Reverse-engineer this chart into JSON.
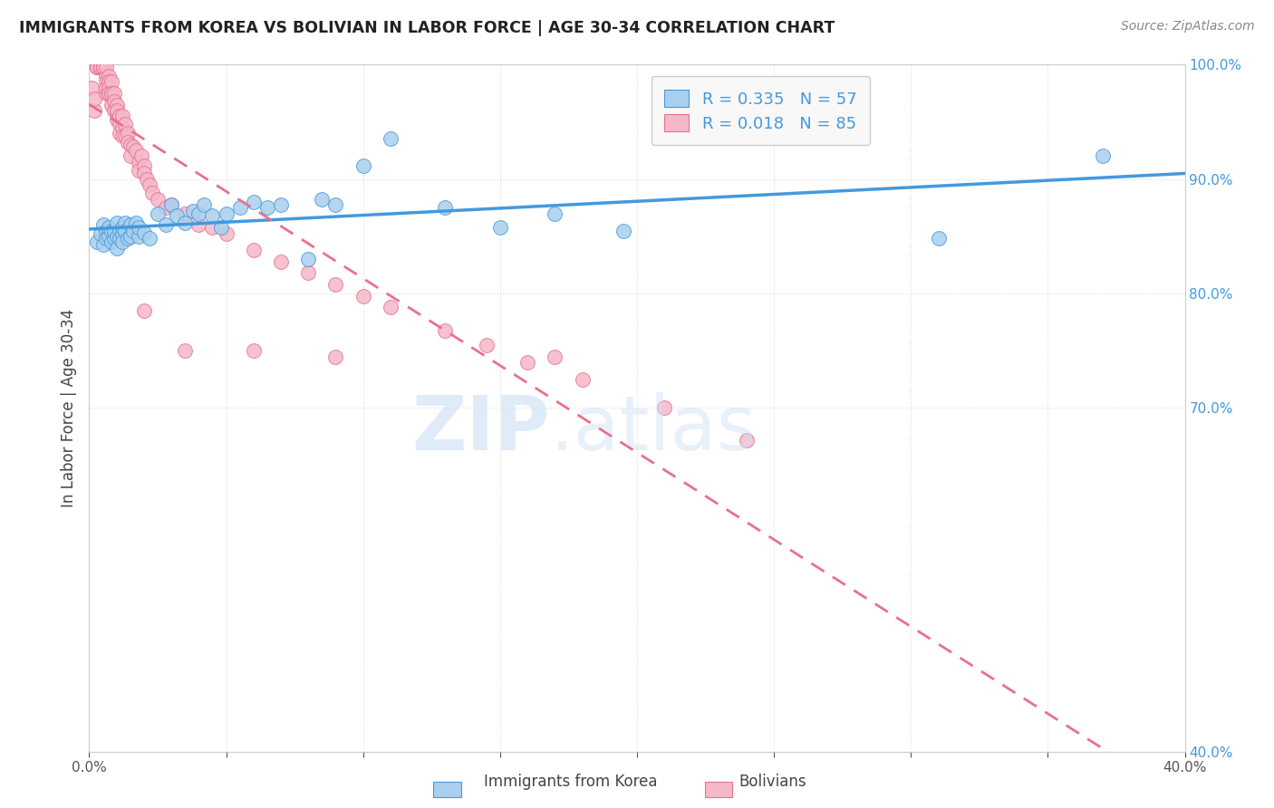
{
  "title": "IMMIGRANTS FROM KOREA VS BOLIVIAN IN LABOR FORCE | AGE 30-34 CORRELATION CHART",
  "source": "Source: ZipAtlas.com",
  "ylabel": "In Labor Force | Age 30-34",
  "x_min": 0.0,
  "x_max": 0.4,
  "y_min": 0.4,
  "y_max": 1.0,
  "grid_color": "#dddddd",
  "background_color": "#ffffff",
  "korea_color": "#aacfee",
  "bolivia_color": "#f5b8c8",
  "korea_line_color": "#4499dd",
  "bolivia_line_color": "#e87090",
  "legend_korea_label": "R = 0.335   N = 57",
  "legend_bolivia_label": "R = 0.018   N = 85",
  "watermark_zip": "ZIP",
  "watermark_atlas": ".atlas",
  "korea_scatter_x": [
    0.003,
    0.004,
    0.005,
    0.005,
    0.006,
    0.006,
    0.007,
    0.007,
    0.008,
    0.008,
    0.009,
    0.009,
    0.01,
    0.01,
    0.01,
    0.011,
    0.011,
    0.012,
    0.012,
    0.012,
    0.013,
    0.013,
    0.014,
    0.015,
    0.015,
    0.016,
    0.017,
    0.018,
    0.018,
    0.02,
    0.022,
    0.025,
    0.028,
    0.03,
    0.032,
    0.035,
    0.038,
    0.04,
    0.042,
    0.045,
    0.048,
    0.05,
    0.055,
    0.06,
    0.065,
    0.07,
    0.08,
    0.085,
    0.09,
    0.1,
    0.11,
    0.13,
    0.15,
    0.17,
    0.195,
    0.31,
    0.37
  ],
  "korea_scatter_y": [
    0.845,
    0.852,
    0.843,
    0.86,
    0.855,
    0.848,
    0.85,
    0.858,
    0.845,
    0.855,
    0.848,
    0.855,
    0.862,
    0.85,
    0.84,
    0.855,
    0.848,
    0.852,
    0.858,
    0.845,
    0.862,
    0.855,
    0.848,
    0.86,
    0.85,
    0.855,
    0.862,
    0.85,
    0.858,
    0.853,
    0.848,
    0.87,
    0.86,
    0.878,
    0.868,
    0.862,
    0.872,
    0.87,
    0.878,
    0.868,
    0.858,
    0.87,
    0.875,
    0.88,
    0.875,
    0.878,
    0.83,
    0.882,
    0.878,
    0.912,
    0.935,
    0.875,
    0.858,
    0.87,
    0.855,
    0.848,
    0.92
  ],
  "bolivia_scatter_x": [
    0.001,
    0.002,
    0.002,
    0.003,
    0.003,
    0.003,
    0.003,
    0.004,
    0.004,
    0.004,
    0.004,
    0.004,
    0.005,
    0.005,
    0.005,
    0.005,
    0.005,
    0.005,
    0.006,
    0.006,
    0.006,
    0.006,
    0.006,
    0.007,
    0.007,
    0.007,
    0.007,
    0.007,
    0.008,
    0.008,
    0.008,
    0.008,
    0.009,
    0.009,
    0.009,
    0.01,
    0.01,
    0.01,
    0.01,
    0.011,
    0.011,
    0.011,
    0.012,
    0.012,
    0.012,
    0.013,
    0.013,
    0.014,
    0.014,
    0.015,
    0.015,
    0.016,
    0.017,
    0.018,
    0.018,
    0.019,
    0.02,
    0.02,
    0.021,
    0.022,
    0.023,
    0.025,
    0.028,
    0.03,
    0.035,
    0.04,
    0.045,
    0.05,
    0.06,
    0.07,
    0.08,
    0.09,
    0.1,
    0.11,
    0.13,
    0.145,
    0.16,
    0.18,
    0.21,
    0.24,
    0.02,
    0.035,
    0.06,
    0.09,
    0.17
  ],
  "bolivia_scatter_y": [
    0.98,
    0.96,
    0.97,
    0.998,
    0.998,
    0.998,
    0.998,
    0.998,
    0.998,
    0.998,
    0.998,
    0.998,
    0.998,
    0.998,
    0.998,
    0.998,
    0.998,
    0.998,
    0.99,
    0.985,
    0.975,
    0.98,
    0.998,
    0.99,
    0.985,
    0.975,
    0.98,
    0.975,
    0.985,
    0.975,
    0.965,
    0.975,
    0.975,
    0.968,
    0.96,
    0.965,
    0.958,
    0.96,
    0.952,
    0.955,
    0.948,
    0.94,
    0.955,
    0.945,
    0.938,
    0.948,
    0.938,
    0.94,
    0.932,
    0.93,
    0.92,
    0.928,
    0.925,
    0.915,
    0.908,
    0.92,
    0.912,
    0.905,
    0.9,
    0.895,
    0.888,
    0.882,
    0.875,
    0.878,
    0.87,
    0.86,
    0.858,
    0.852,
    0.838,
    0.828,
    0.818,
    0.808,
    0.798,
    0.788,
    0.768,
    0.755,
    0.74,
    0.725,
    0.7,
    0.672,
    0.785,
    0.75,
    0.75,
    0.745,
    0.745
  ]
}
